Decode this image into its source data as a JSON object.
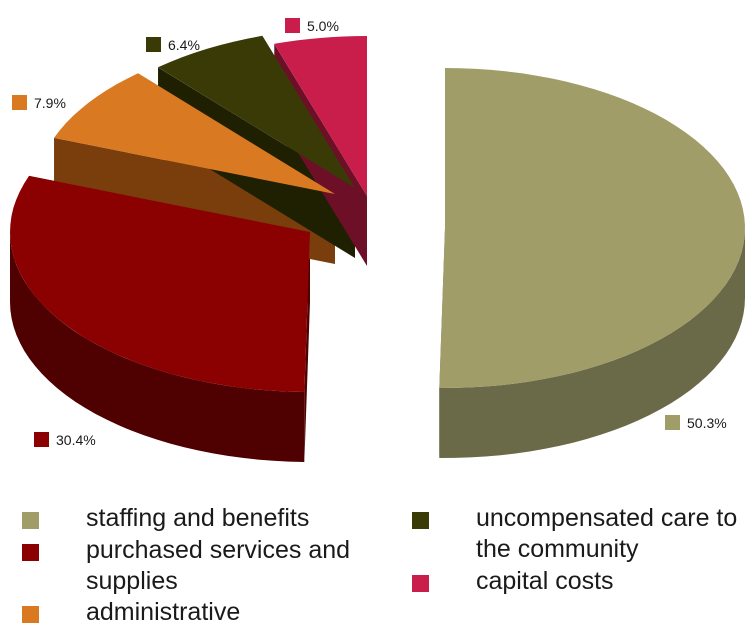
{
  "chart_data": {
    "type": "pie",
    "style": "3d-exploded",
    "slices": [
      {
        "label": "staffing and benefits",
        "value": 50.3,
        "display": "50.3%",
        "color": "#a09d68",
        "side_color": "#6b6a48"
      },
      {
        "label": "purchased services and supplies",
        "value": 30.4,
        "display": "30.4%",
        "color": "#8b0000",
        "side_color": "#4f0000"
      },
      {
        "label": "administrative",
        "value": 7.9,
        "display": "7.9%",
        "color": "#d97a22",
        "side_color": "#7a3d0c"
      },
      {
        "label": "uncompensated care to the community",
        "value": 6.4,
        "display": "6.4%",
        "color": "#3a3a07",
        "side_color": "#1f1f02"
      },
      {
        "label": "capital costs",
        "value": 5.0,
        "display": "5.0%",
        "color": "#c91d4b",
        "side_color": "#6e0f28"
      }
    ],
    "legend": {
      "placement": "bottom",
      "columns": 2
    }
  }
}
